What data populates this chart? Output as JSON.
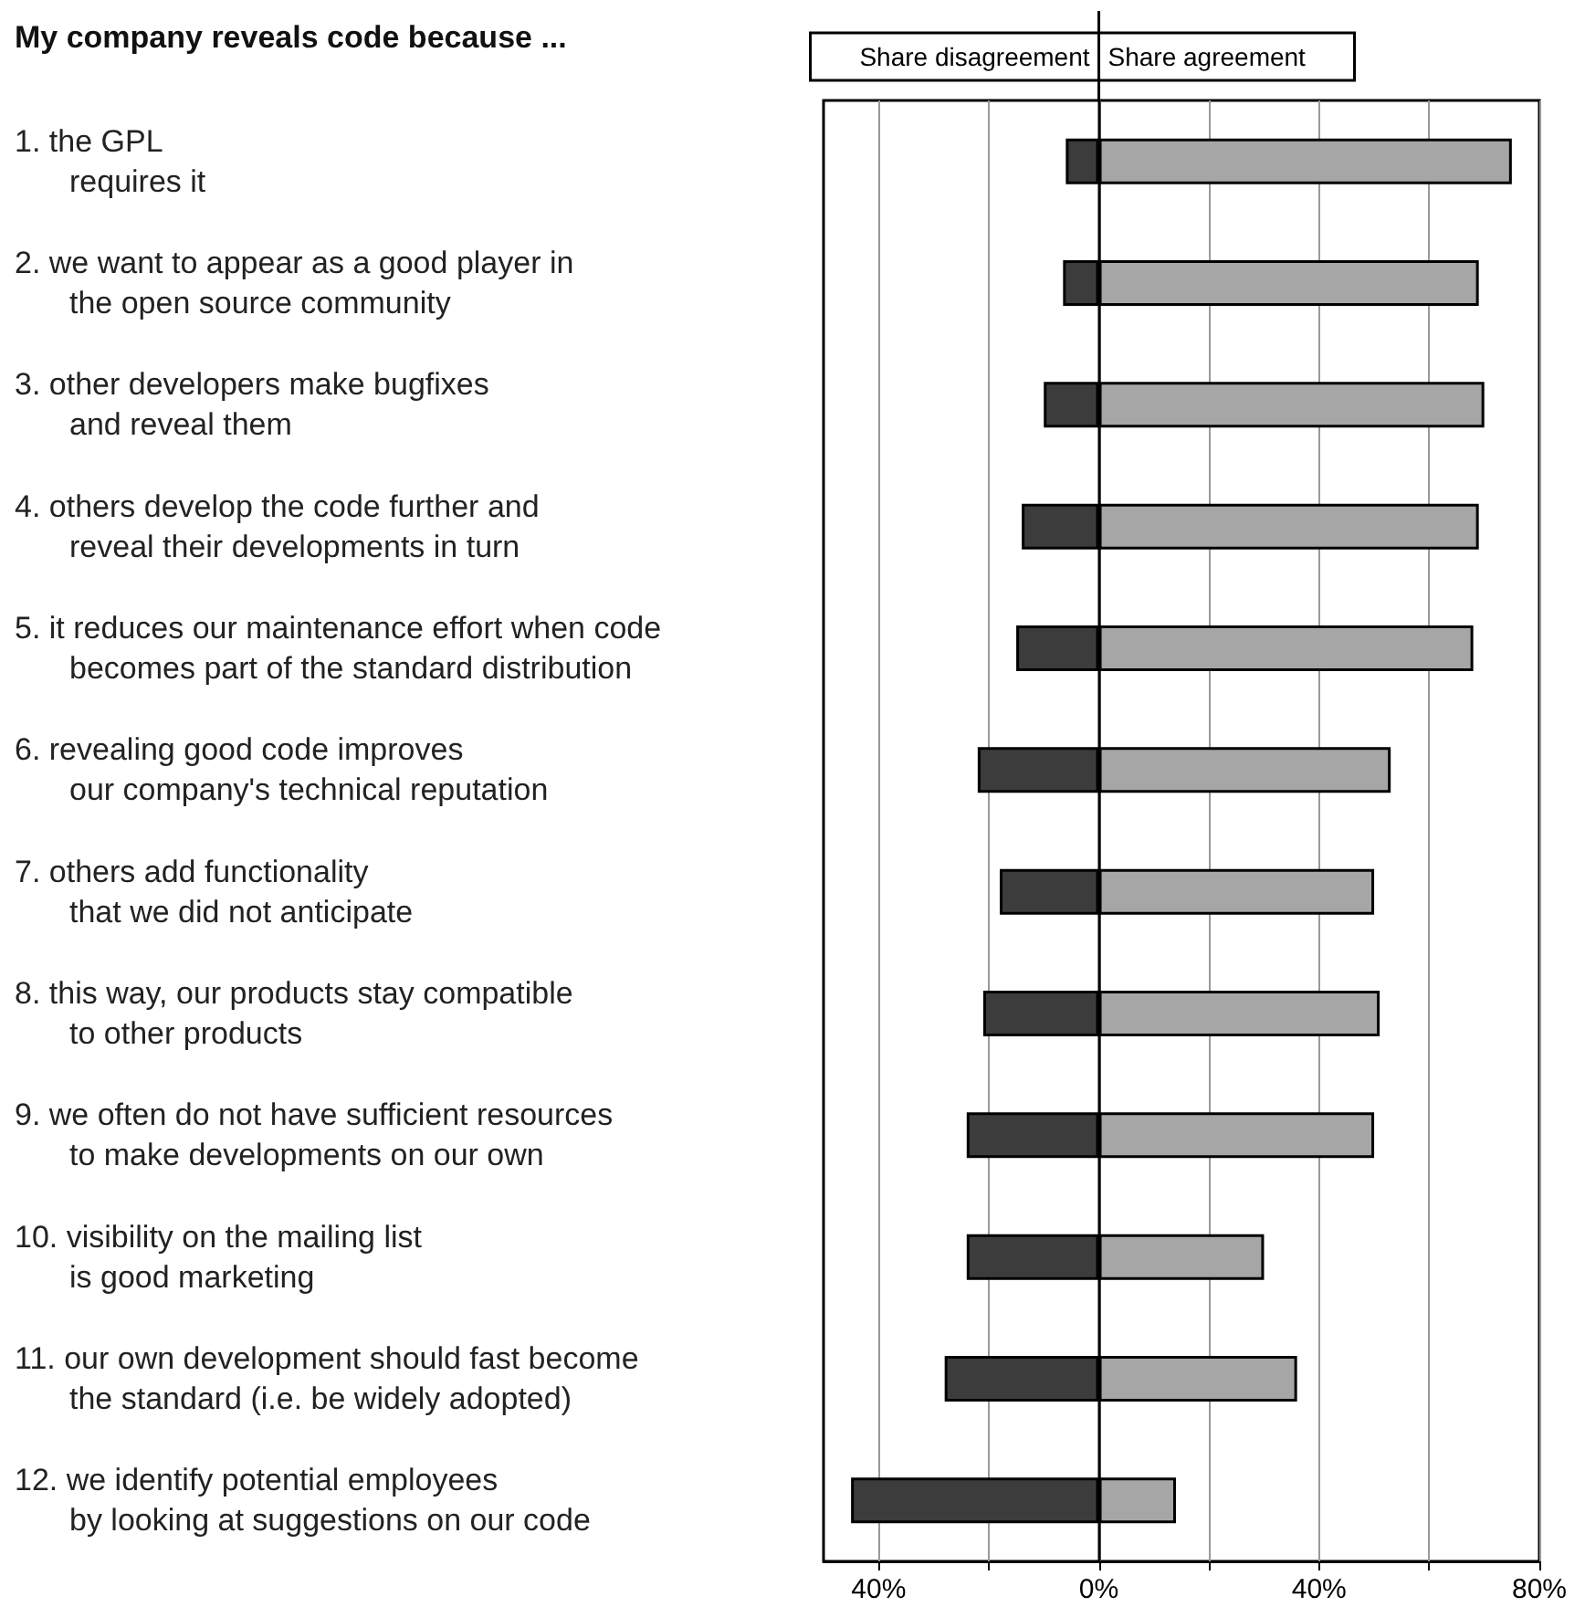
{
  "chart_data": {
    "type": "bar",
    "orientation": "horizontal",
    "stacked": true,
    "title": "My company reveals code because ...",
    "categories": [
      "1. the GPL\nrequires it",
      "2. we want to appear as a good player in\nthe open source community",
      "3. other developers make bugfixes\nand reveal them",
      "4. others develop the code further and\nreveal their developments in turn",
      "5. it reduces our maintenance effort when code\nbecomes part of the standard distribution",
      "6. revealing good code improves\nour company's technical reputation",
      "7. others add functionality\nthat we did not anticipate",
      "8. this way, our products stay compatible\nto other products",
      "9. we often do not have sufficient resources\nto make developments on our own",
      "10. visibility on the mailing list\nis good marketing",
      "11. our own development should fast become\nthe standard (i.e. be widely adopted)",
      "12. we identify potential employees\nby looking at suggestions on our code"
    ],
    "series": [
      {
        "name": "Share disagreement",
        "color": "#3c3c3c",
        "values": [
          -6,
          -6.5,
          -10,
          -14,
          -15,
          -22,
          -18,
          -21,
          -24,
          -24,
          -28,
          -45
        ]
      },
      {
        "name": "Share agreement",
        "color": "#a6a6a6",
        "values": [
          75,
          69,
          70,
          69,
          68,
          53,
          50,
          51,
          50,
          30,
          36,
          14
        ]
      }
    ],
    "xlim": [
      -50,
      80
    ],
    "xticks": [
      {
        "value": -40,
        "label": "40%"
      },
      {
        "value": -20,
        "label": null
      },
      {
        "value": 0,
        "label": "0%"
      },
      {
        "value": 20,
        "label": null
      },
      {
        "value": 40,
        "label": "40%"
      },
      {
        "value": 60,
        "label": null
      },
      {
        "value": 80,
        "label": "80%"
      }
    ],
    "grid": "x",
    "legend": "top"
  }
}
